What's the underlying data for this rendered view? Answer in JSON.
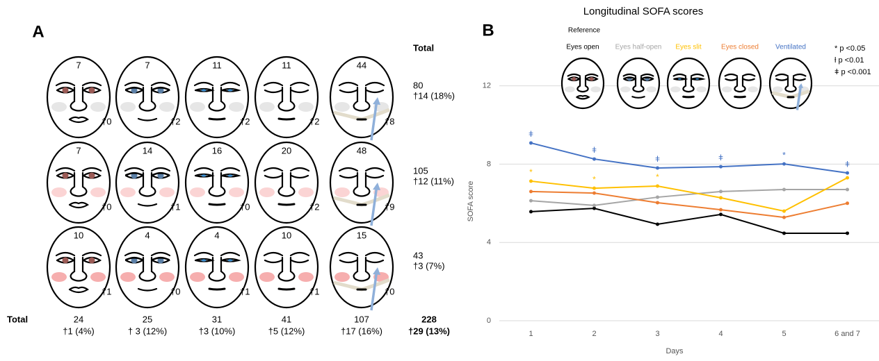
{
  "panel_a": {
    "label": "A",
    "total_header": "Total",
    "row_total_label": "Total",
    "rows": [
      {
        "counts": [
          7,
          7,
          11,
          11,
          44
        ],
        "deaths": [
          "†0",
          "†2",
          "†2",
          "†2",
          "†8"
        ],
        "total": 80,
        "total_deaths": "†14 (18%)"
      },
      {
        "counts": [
          7,
          14,
          16,
          20,
          48
        ],
        "deaths": [
          "†0",
          "†1",
          "†0",
          "†2",
          "†9"
        ],
        "total": 105,
        "total_deaths": "†12 (11%)"
      },
      {
        "counts": [
          10,
          4,
          4,
          10,
          15
        ],
        "deaths": [
          "†1",
          "†0",
          "†1",
          "†1",
          "†0"
        ],
        "total": 43,
        "total_deaths": "†3 (7%)"
      }
    ],
    "column_totals": [
      24,
      25,
      31,
      41,
      107
    ],
    "column_deaths": [
      "†1 (4%)",
      "† 3 (12%)",
      "†3 (10%)",
      "†5 (12%)",
      "†17 (16%)"
    ],
    "grand_total": 228,
    "grand_deaths": "†29 (13%)"
  },
  "chart_data": {
    "type": "line",
    "title": "Longitudinal SOFA scores",
    "panel_label": "B",
    "reference_label": "Reference",
    "x_label": "Days",
    "y_label": "SOFA score",
    "categories": [
      "1",
      "2",
      "3",
      "4",
      "5",
      "6 and 7"
    ],
    "series": [
      {
        "name": "Eyes open",
        "color": "#000000",
        "values": [
          5.57,
          5.74,
          4.93,
          5.43,
          4.47,
          4.47
        ],
        "markers": [
          null,
          null,
          null,
          null,
          null,
          null
        ]
      },
      {
        "name": "Eyes half-open",
        "color": "#a5a5a5",
        "values": [
          6.13,
          5.89,
          6.31,
          6.6,
          6.7,
          6.7
        ],
        "markers": [
          null,
          null,
          null,
          null,
          null,
          null
        ]
      },
      {
        "name": "Eyes slit",
        "color": "#ffc000",
        "values": [
          7.13,
          6.77,
          6.88,
          6.28,
          5.6,
          7.3
        ],
        "markers": [
          "*",
          "*",
          "*",
          null,
          null,
          null
        ]
      },
      {
        "name": "Eyes closed",
        "color": "#ed7d31",
        "values": [
          6.6,
          6.52,
          6.03,
          5.67,
          5.28,
          6.0
        ],
        "markers": [
          null,
          null,
          null,
          null,
          null,
          null
        ]
      },
      {
        "name": "Ventilated",
        "color": "#4472c4",
        "values": [
          9.08,
          8.26,
          7.8,
          7.87,
          8.01,
          7.55
        ],
        "markers": [
          "ǂ",
          "ǂ",
          "ǂ",
          "ǂ",
          "*",
          "ǂ"
        ]
      }
    ],
    "ylim": [
      0,
      15
    ],
    "yticks": [
      0,
      4,
      8,
      12
    ],
    "grid": true,
    "significance_legend": [
      "* p <0.05",
      "ƚ p <0.01",
      "ǂ p <0.001"
    ]
  }
}
